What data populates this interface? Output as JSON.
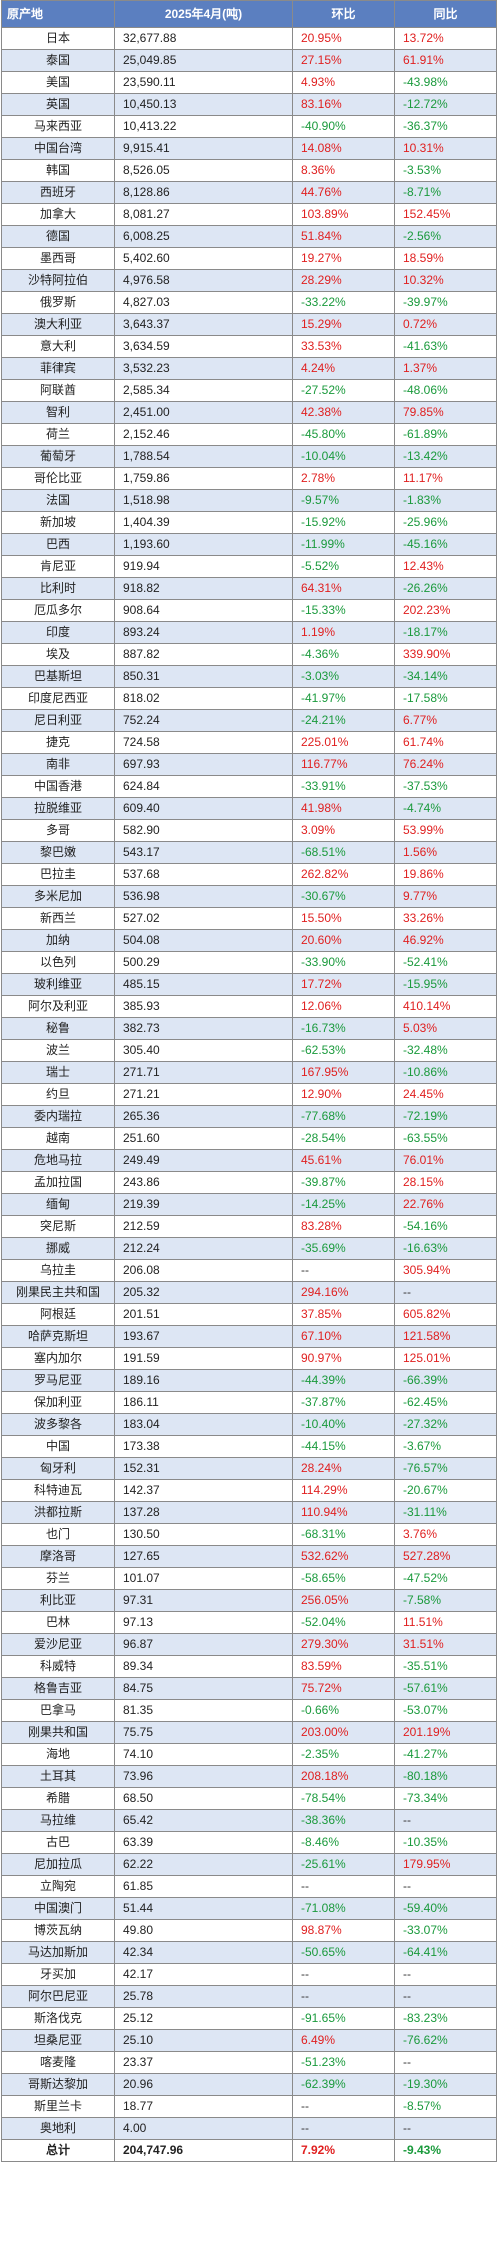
{
  "headers": [
    "原产地",
    "2025年4月(吨)",
    "环比",
    "同比"
  ],
  "colors": {
    "header_bg": "#5b7fc0",
    "stripe": "#dde6f4",
    "positive": "#e02020",
    "negative": "#1a9a3c"
  },
  "rows": [
    [
      "日本",
      "32,677.88",
      "20.95%",
      "13.72%"
    ],
    [
      "泰国",
      "25,049.85",
      "27.15%",
      "61.91%"
    ],
    [
      "美国",
      "23,590.11",
      "4.93%",
      "-43.98%"
    ],
    [
      "英国",
      "10,450.13",
      "83.16%",
      "-12.72%"
    ],
    [
      "马来西亚",
      "10,413.22",
      "-40.90%",
      "-36.37%"
    ],
    [
      "中国台湾",
      "9,915.41",
      "14.08%",
      "10.31%"
    ],
    [
      "韩国",
      "8,526.05",
      "8.36%",
      "-3.53%"
    ],
    [
      "西班牙",
      "8,128.86",
      "44.76%",
      "-8.71%"
    ],
    [
      "加拿大",
      "8,081.27",
      "103.89%",
      "152.45%"
    ],
    [
      "德国",
      "6,008.25",
      "51.84%",
      "-2.56%"
    ],
    [
      "墨西哥",
      "5,402.60",
      "19.27%",
      "18.59%"
    ],
    [
      "沙特阿拉伯",
      "4,976.58",
      "28.29%",
      "10.32%"
    ],
    [
      "俄罗斯",
      "4,827.03",
      "-33.22%",
      "-39.97%"
    ],
    [
      "澳大利亚",
      "3,643.37",
      "15.29%",
      "0.72%"
    ],
    [
      "意大利",
      "3,634.59",
      "33.53%",
      "-41.63%"
    ],
    [
      "菲律宾",
      "3,532.23",
      "4.24%",
      "1.37%"
    ],
    [
      "阿联酋",
      "2,585.34",
      "-27.52%",
      "-48.06%"
    ],
    [
      "智利",
      "2,451.00",
      "42.38%",
      "79.85%"
    ],
    [
      "荷兰",
      "2,152.46",
      "-45.80%",
      "-61.89%"
    ],
    [
      "葡萄牙",
      "1,788.54",
      "-10.04%",
      "-13.42%"
    ],
    [
      "哥伦比亚",
      "1,759.86",
      "2.78%",
      "11.17%"
    ],
    [
      "法国",
      "1,518.98",
      "-9.57%",
      "-1.83%"
    ],
    [
      "新加坡",
      "1,404.39",
      "-15.92%",
      "-25.96%"
    ],
    [
      "巴西",
      "1,193.60",
      "-11.99%",
      "-45.16%"
    ],
    [
      "肯尼亚",
      "919.94",
      "-5.52%",
      "12.43%"
    ],
    [
      "比利时",
      "918.82",
      "64.31%",
      "-26.26%"
    ],
    [
      "厄瓜多尔",
      "908.64",
      "-15.33%",
      "202.23%"
    ],
    [
      "印度",
      "893.24",
      "1.19%",
      "-18.17%"
    ],
    [
      "埃及",
      "887.82",
      "-4.36%",
      "339.90%"
    ],
    [
      "巴基斯坦",
      "850.31",
      "-3.03%",
      "-34.14%"
    ],
    [
      "印度尼西亚",
      "818.02",
      "-41.97%",
      "-17.58%"
    ],
    [
      "尼日利亚",
      "752.24",
      "-24.21%",
      "6.77%"
    ],
    [
      "捷克",
      "724.58",
      "225.01%",
      "61.74%"
    ],
    [
      "南非",
      "697.93",
      "116.77%",
      "76.24%"
    ],
    [
      "中国香港",
      "624.84",
      "-33.91%",
      "-37.53%"
    ],
    [
      "拉脱维亚",
      "609.40",
      "41.98%",
      "-4.74%"
    ],
    [
      "多哥",
      "582.90",
      "3.09%",
      "53.99%"
    ],
    [
      "黎巴嫩",
      "543.17",
      "-68.51%",
      "1.56%"
    ],
    [
      "巴拉圭",
      "537.68",
      "262.82%",
      "19.86%"
    ],
    [
      "多米尼加",
      "536.98",
      "-30.67%",
      "9.77%"
    ],
    [
      "新西兰",
      "527.02",
      "15.50%",
      "33.26%"
    ],
    [
      "加纳",
      "504.08",
      "20.60%",
      "46.92%"
    ],
    [
      "以色列",
      "500.29",
      "-33.90%",
      "-52.41%"
    ],
    [
      "玻利维亚",
      "485.15",
      "17.72%",
      "-15.95%"
    ],
    [
      "阿尔及利亚",
      "385.93",
      "12.06%",
      "410.14%"
    ],
    [
      "秘鲁",
      "382.73",
      "-16.73%",
      "5.03%"
    ],
    [
      "波兰",
      "305.40",
      "-62.53%",
      "-32.48%"
    ],
    [
      "瑞士",
      "271.71",
      "167.95%",
      "-10.86%"
    ],
    [
      "约旦",
      "271.21",
      "12.90%",
      "24.45%"
    ],
    [
      "委内瑞拉",
      "265.36",
      "-77.68%",
      "-72.19%"
    ],
    [
      "越南",
      "251.60",
      "-28.54%",
      "-63.55%"
    ],
    [
      "危地马拉",
      "249.49",
      "45.61%",
      "76.01%"
    ],
    [
      "孟加拉国",
      "243.86",
      "-39.87%",
      "28.15%"
    ],
    [
      "缅甸",
      "219.39",
      "-14.25%",
      "22.76%"
    ],
    [
      "突尼斯",
      "212.59",
      "83.28%",
      "-54.16%"
    ],
    [
      "挪威",
      "212.24",
      "-35.69%",
      "-16.63%"
    ],
    [
      "乌拉圭",
      "206.08",
      "--",
      "305.94%"
    ],
    [
      "刚果民主共和国",
      "205.32",
      "294.16%",
      "--"
    ],
    [
      "阿根廷",
      "201.51",
      "37.85%",
      "605.82%"
    ],
    [
      "哈萨克斯坦",
      "193.67",
      "67.10%",
      "121.58%"
    ],
    [
      "塞内加尔",
      "191.59",
      "90.97%",
      "125.01%"
    ],
    [
      "罗马尼亚",
      "189.16",
      "-44.39%",
      "-66.39%"
    ],
    [
      "保加利亚",
      "186.11",
      "-37.87%",
      "-62.45%"
    ],
    [
      "波多黎各",
      "183.04",
      "-10.40%",
      "-27.32%"
    ],
    [
      "中国",
      "173.38",
      "-44.15%",
      "-3.67%"
    ],
    [
      "匈牙利",
      "152.31",
      "28.24%",
      "-76.57%"
    ],
    [
      "科特迪瓦",
      "142.37",
      "114.29%",
      "-20.67%"
    ],
    [
      "洪都拉斯",
      "137.28",
      "110.94%",
      "-31.11%"
    ],
    [
      "也门",
      "130.50",
      "-68.31%",
      "3.76%"
    ],
    [
      "摩洛哥",
      "127.65",
      "532.62%",
      "527.28%"
    ],
    [
      "芬兰",
      "101.07",
      "-58.65%",
      "-47.52%"
    ],
    [
      "利比亚",
      "97.31",
      "256.05%",
      "-7.58%"
    ],
    [
      "巴林",
      "97.13",
      "-52.04%",
      "11.51%"
    ],
    [
      "爱沙尼亚",
      "96.87",
      "279.30%",
      "31.51%"
    ],
    [
      "科威特",
      "89.34",
      "83.59%",
      "-35.51%"
    ],
    [
      "格鲁吉亚",
      "84.75",
      "75.72%",
      "-57.61%"
    ],
    [
      "巴拿马",
      "81.35",
      "-0.66%",
      "-53.07%"
    ],
    [
      "刚果共和国",
      "75.75",
      "203.00%",
      "201.19%"
    ],
    [
      "海地",
      "74.10",
      "-2.35%",
      "-41.27%"
    ],
    [
      "土耳其",
      "73.96",
      "208.18%",
      "-80.18%"
    ],
    [
      "希腊",
      "68.50",
      "-78.54%",
      "-73.34%"
    ],
    [
      "马拉维",
      "65.42",
      "-38.36%",
      "--"
    ],
    [
      "古巴",
      "63.39",
      "-8.46%",
      "-10.35%"
    ],
    [
      "尼加拉瓜",
      "62.22",
      "-25.61%",
      "179.95%"
    ],
    [
      "立陶宛",
      "61.85",
      "--",
      "--"
    ],
    [
      "中国澳门",
      "51.44",
      "-71.08%",
      "-59.40%"
    ],
    [
      "博茨瓦纳",
      "49.80",
      "98.87%",
      "-33.07%"
    ],
    [
      "马达加斯加",
      "42.34",
      "-50.65%",
      "-64.41%"
    ],
    [
      "牙买加",
      "42.17",
      "--",
      "--"
    ],
    [
      "阿尔巴尼亚",
      "25.78",
      "--",
      "--"
    ],
    [
      "斯洛伐克",
      "25.12",
      "-91.65%",
      "-83.23%"
    ],
    [
      "坦桑尼亚",
      "25.10",
      "6.49%",
      "-76.62%"
    ],
    [
      "喀麦隆",
      "23.37",
      "-51.23%",
      "--"
    ],
    [
      "哥斯达黎加",
      "20.96",
      "-62.39%",
      "-19.30%"
    ],
    [
      "斯里兰卡",
      "18.77",
      "--",
      "-8.57%"
    ],
    [
      "奥地利",
      "4.00",
      "--",
      "--"
    ]
  ],
  "total": [
    "总计",
    "204,747.96",
    "7.92%",
    "-9.43%"
  ]
}
